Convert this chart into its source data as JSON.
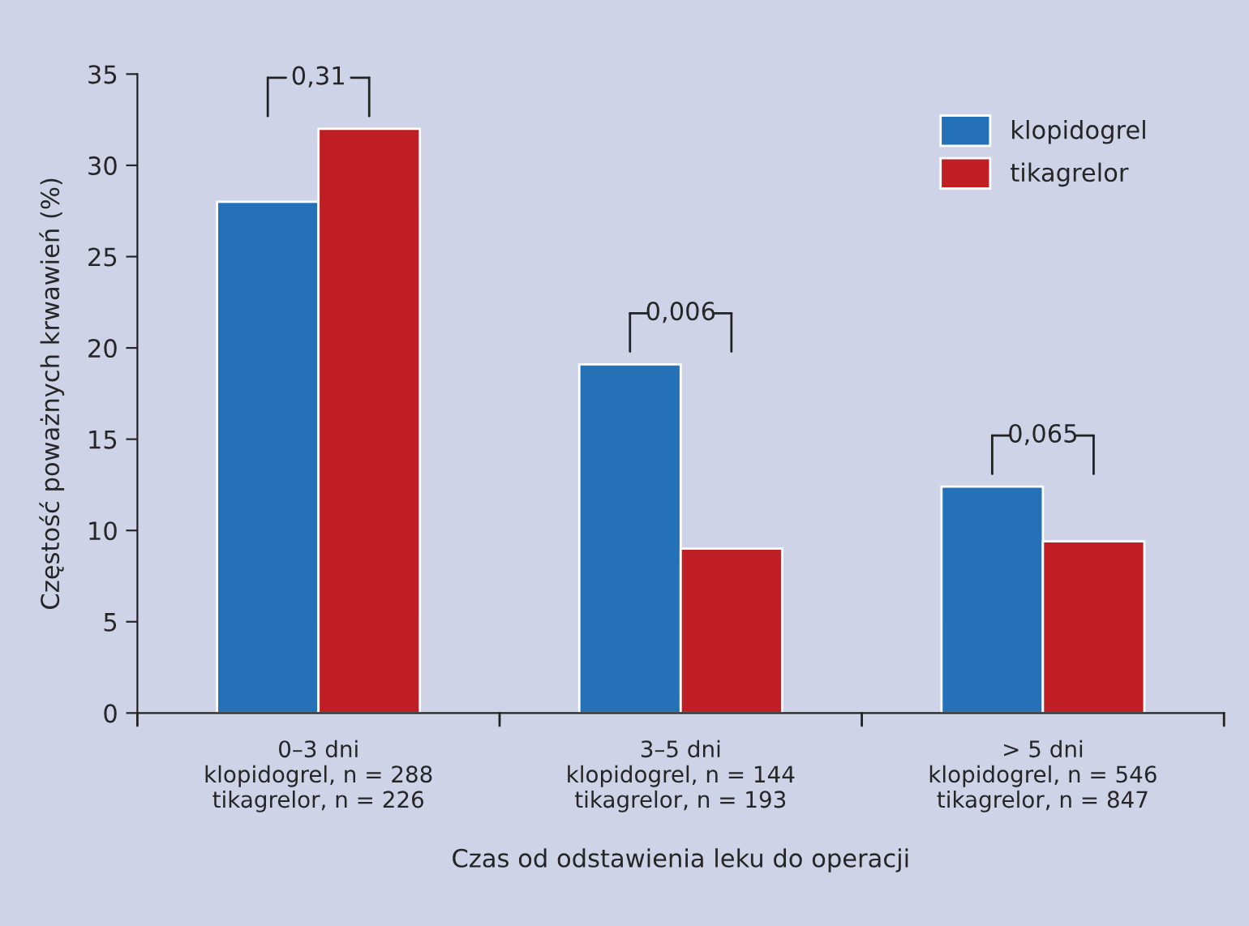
{
  "chart_data": {
    "type": "bar",
    "xlabel": "Czas od odstawienia leku do operacji",
    "ylabel": "Częstość poważnych krwawień (%)",
    "categories": [
      "0–3 dni\nklopidogrel, n = 288\ntikagrelor, n = 226",
      "3–5 dni\nklopidogrel, n = 144\ntikagrelor, n = 193",
      "> 5 dni\nklopidogrel, n = 546\ntikagrelor, n = 847"
    ],
    "series": [
      {
        "name": "klopidogrel",
        "color": "#2571b8",
        "values": [
          28,
          19.1,
          12.4
        ]
      },
      {
        "name": "tikagrelor",
        "color": "#be1e24",
        "values": [
          32,
          9,
          9.4
        ]
      }
    ],
    "annotations": [
      "0,31",
      "0,006",
      "0,065"
    ],
    "ylim": [
      0,
      35
    ],
    "yticks": [
      0,
      5,
      10,
      15,
      20,
      25,
      30,
      35
    ],
    "grid": false,
    "legend": "top right"
  }
}
